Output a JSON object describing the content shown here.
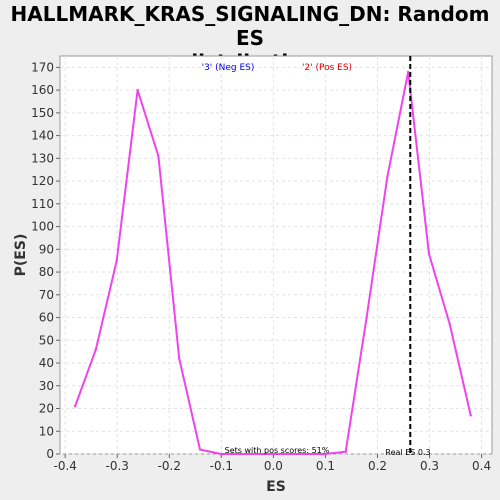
{
  "chart_data": {
    "type": "line",
    "title_line1": "HALLMARK_KRAS_SIGNALING_DN: Random ES",
    "title_line2": "distribution",
    "xlabel": "ES",
    "ylabel": "P(ES)",
    "xlim": [
      -0.41,
      0.42
    ],
    "ylim": [
      0,
      175
    ],
    "xticks": [
      -0.4,
      -0.3,
      -0.2,
      -0.1,
      0.0,
      0.1,
      0.2,
      0.3,
      0.4
    ],
    "xtick_labels": [
      "-0.4",
      "-0.3",
      "-0.2",
      "-0.1",
      "0.0",
      "0.1",
      "0.2",
      "0.3",
      "0.4"
    ],
    "yticks": [
      0,
      10,
      20,
      30,
      40,
      50,
      60,
      70,
      80,
      90,
      100,
      110,
      120,
      130,
      140,
      150,
      160,
      170
    ],
    "grid": true,
    "series": [
      {
        "color": "#ee44ee",
        "x": [
          -0.381,
          -0.341,
          -0.301,
          -0.261,
          -0.221,
          -0.181,
          -0.141,
          -0.101,
          -0.061,
          -0.021,
          0.019,
          0.059,
          0.099,
          0.139,
          0.179,
          0.219,
          0.259,
          0.299,
          0.339,
          0.379
        ],
        "y": [
          21,
          46,
          85,
          160,
          131,
          42,
          2,
          0,
          0,
          0,
          0,
          0,
          0,
          1,
          60,
          122,
          168,
          88,
          57,
          17
        ]
      }
    ],
    "legend": [
      {
        "label": "'3' (Neg ES)",
        "color": "#0000dd"
      },
      {
        "label": "'2' (Pos ES)",
        "color": "#dd0000"
      }
    ],
    "real_es": {
      "x": 0.263,
      "label": "Real ES 0.3"
    },
    "annotation": "Sets with pos scores: 51%"
  }
}
